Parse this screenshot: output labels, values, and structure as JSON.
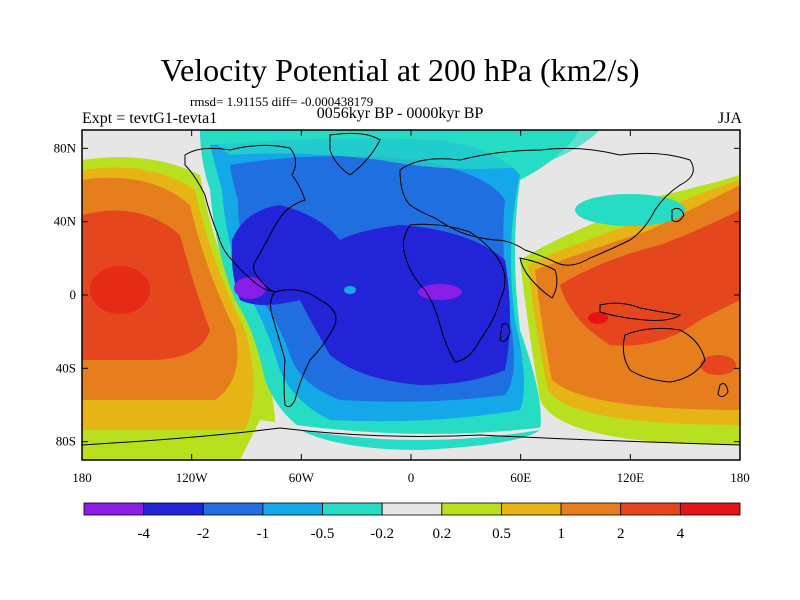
{
  "title": "Velocity Potential at 200 hPa (km2/s)",
  "stats": "rmsd= 1.91155 diff= -0.000438179",
  "left_label": "Expt = tevtG1-tevta1",
  "center_label": "0056kyr BP - 0000kyr BP",
  "right_label": "JJA",
  "chart_data": {
    "type": "filled-contour-map",
    "projection": "cylindrical-equidistant",
    "lon_range": [
      -180,
      180
    ],
    "lat_range": [
      -90,
      90
    ],
    "lat_ticks": [
      {
        "value": 80,
        "label": "80N"
      },
      {
        "value": 40,
        "label": "40N"
      },
      {
        "value": 0,
        "label": "0"
      },
      {
        "value": -40,
        "label": "40S"
      },
      {
        "value": -80,
        "label": "80S"
      }
    ],
    "lon_ticks": [
      {
        "value": -180,
        "label": "180"
      },
      {
        "value": -120,
        "label": "120W"
      },
      {
        "value": -60,
        "label": "60W"
      },
      {
        "value": 0,
        "label": "0"
      },
      {
        "value": 60,
        "label": "60E"
      },
      {
        "value": 120,
        "label": "120E"
      },
      {
        "value": 180,
        "label": "180"
      }
    ],
    "colorbar": {
      "labels": [
        "-4",
        "-2",
        "-1",
        "-0.5",
        "-0.2",
        "0.2",
        "0.5",
        "1",
        "2",
        "4"
      ],
      "colors": [
        "#8a1ee6",
        "#2323d8",
        "#1f6fe0",
        "#14a8e8",
        "#27dcc4",
        "#e6e6e6",
        "#b8e01e",
        "#e6b414",
        "#e67e1e",
        "#e6461e",
        "#e61414"
      ]
    }
  }
}
